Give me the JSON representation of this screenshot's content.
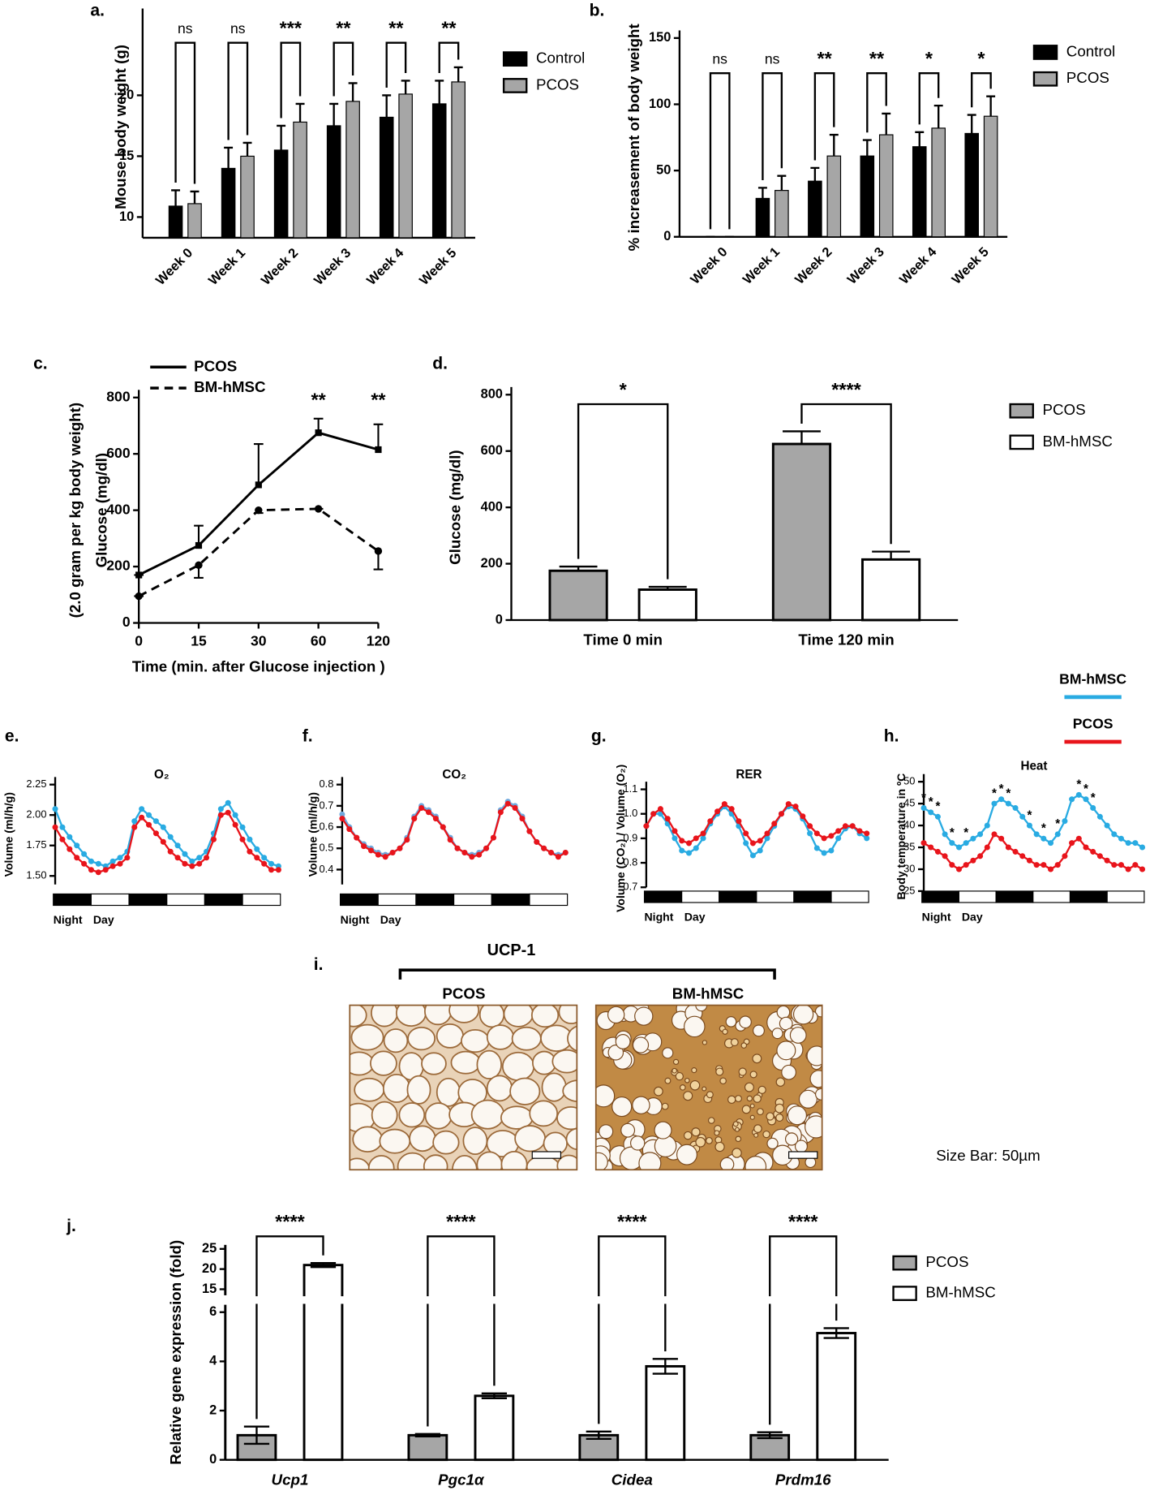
{
  "chart_data": [
    {
      "type": "bar",
      "panel": "a.",
      "y_label": "Mouse body weight (g)",
      "categories": [
        "Week 0",
        "Week 1",
        "Week 2",
        "Week 3",
        "Week 4",
        "Week 5"
      ],
      "series": [
        {
          "name": "Control",
          "color": "#000000",
          "values": [
            10.9,
            14,
            15.5,
            17.5,
            18.2,
            19.3
          ],
          "errors": [
            1.3,
            1.7,
            2,
            1.8,
            1.8,
            1.9
          ]
        },
        {
          "name": "PCOS",
          "color": "#a6a6a6",
          "values": [
            11.1,
            15,
            17.8,
            19.5,
            20.1,
            21.1
          ],
          "errors": [
            1,
            1.1,
            1.5,
            1.5,
            1.1,
            1.2
          ]
        }
      ],
      "significance": [
        "ns",
        "ns",
        "***",
        "**",
        "**",
        "**"
      ],
      "ylim": [
        8.3,
        26.5
      ],
      "yticks": [
        10,
        15,
        20
      ]
    },
    {
      "type": "bar",
      "panel": "b.",
      "y_label": "% increasement of body weight",
      "categories": [
        "Week 0",
        "Week 1",
        "Week 2",
        "Week 3",
        "Week 4",
        "Week 5"
      ],
      "series": [
        {
          "name": "Control",
          "color": "#000000",
          "values": [
            0,
            29,
            42,
            61,
            68,
            78
          ],
          "errors": [
            0,
            8,
            10,
            12,
            11,
            14
          ]
        },
        {
          "name": "PCOS",
          "color": "#a6a6a6",
          "values": [
            0,
            35,
            61,
            77,
            82,
            91
          ],
          "errors": [
            0,
            11,
            16,
            16,
            17,
            15
          ]
        }
      ],
      "significance": [
        "ns",
        "ns",
        "**",
        "**",
        "*",
        "*"
      ],
      "ylim": [
        0,
        150
      ],
      "yticks": [
        0,
        50,
        100,
        150
      ]
    },
    {
      "type": "line",
      "panel": "c.",
      "y_label": [
        "(2.0 gram per kg body weight)",
        "Glucose (mg/dl)"
      ],
      "x_label": "Time (min. after Glucose injection )",
      "categories": [
        "0",
        "15",
        "30",
        "60",
        "120"
      ],
      "series": [
        {
          "name": "PCOS",
          "color": "#000000",
          "dash": false,
          "values": [
            170,
            275,
            490,
            675,
            615
          ],
          "errors": [
            0,
            70,
            145,
            50,
            90
          ]
        },
        {
          "name": "BM-hMSC",
          "color": "#000000",
          "dash": true,
          "values": [
            95,
            205,
            400,
            405,
            255
          ],
          "errors": [
            0,
            45,
            10,
            0,
            65
          ]
        }
      ],
      "significance": [
        null,
        null,
        null,
        "**",
        "**"
      ],
      "ylim": [
        0,
        800
      ],
      "yticks": [
        0,
        200,
        400,
        600,
        800
      ]
    },
    {
      "type": "bar",
      "panel": "d.",
      "y_label": "Glucose (mg/dl)",
      "categories": [
        "Time 0 min",
        "Time 120 min"
      ],
      "series": [
        {
          "name": "PCOS",
          "color": "#a6a6a6",
          "values": [
            175,
            625
          ],
          "errors": [
            15,
            45
          ]
        },
        {
          "name": "BM-hMSC",
          "color": "#ffffff",
          "values": [
            108,
            215
          ],
          "errors": [
            10,
            28
          ]
        }
      ],
      "significance": [
        "*",
        "****"
      ],
      "ylim": [
        0,
        800
      ],
      "yticks": [
        0,
        200,
        400,
        600,
        800
      ]
    },
    {
      "type": "timeseries",
      "panel": "e.",
      "title": "O₂",
      "y_label": "Volume (ml/h/g)",
      "phase_labels": [
        "Night",
        "Day"
      ],
      "series": [
        {
          "color": "#29abe2",
          "values": [
            2.05,
            1.9,
            1.82,
            1.75,
            1.68,
            1.62,
            1.6,
            1.58,
            1.62,
            1.65,
            1.7,
            1.95,
            2.05,
            2.0,
            1.95,
            1.9,
            1.82,
            1.75,
            1.68,
            1.62,
            1.65,
            1.7,
            1.85,
            2.05,
            2.1,
            2.0,
            1.9,
            1.8,
            1.72,
            1.65,
            1.6,
            1.58
          ]
        },
        {
          "color": "#e8141b",
          "values": [
            1.9,
            1.8,
            1.72,
            1.65,
            1.6,
            1.55,
            1.53,
            1.55,
            1.58,
            1.6,
            1.65,
            1.9,
            1.98,
            1.92,
            1.85,
            1.78,
            1.7,
            1.65,
            1.6,
            1.58,
            1.6,
            1.65,
            1.8,
            2.0,
            2.02,
            1.92,
            1.8,
            1.7,
            1.65,
            1.6,
            1.55,
            1.55
          ]
        }
      ],
      "ylim": [
        1.43,
        2.25
      ],
      "yticks": [
        {
          "value": 1.5,
          "label": "1.50"
        },
        1.75,
        {
          "value": 2,
          "label": "2.00"
        },
        2.25
      ]
    },
    {
      "type": "timeseries",
      "panel": "f.",
      "title": "CO₂",
      "y_label": "Volume (ml/h/g)",
      "phase_labels": [
        "Night",
        "Day"
      ],
      "series": [
        {
          "color": "#6fa8dc",
          "values": [
            0.66,
            0.6,
            0.55,
            0.52,
            0.5,
            0.48,
            0.47,
            0.48,
            0.5,
            0.55,
            0.65,
            0.7,
            0.68,
            0.65,
            0.6,
            0.55,
            0.5,
            0.48,
            0.47,
            0.48,
            0.5,
            0.55,
            0.68,
            0.72,
            0.7,
            0.65,
            0.58,
            0.53,
            0.5,
            0.48,
            0.47,
            0.48
          ]
        },
        {
          "color": "#e8141b",
          "values": [
            0.64,
            0.59,
            0.55,
            0.51,
            0.49,
            0.47,
            0.46,
            0.48,
            0.5,
            0.54,
            0.64,
            0.69,
            0.67,
            0.64,
            0.6,
            0.54,
            0.5,
            0.48,
            0.46,
            0.47,
            0.5,
            0.55,
            0.67,
            0.71,
            0.69,
            0.64,
            0.58,
            0.53,
            0.5,
            0.48,
            0.46,
            0.48
          ]
        }
      ],
      "ylim": [
        0.33,
        0.8
      ],
      "yticks": [
        0.4,
        0.5,
        0.6,
        0.7,
        0.8
      ]
    },
    {
      "type": "timeseries",
      "panel": "g.",
      "title": "RER",
      "y_label": "Volume (CO₂) / Volume (O₂)",
      "phase_labels": [
        "Night",
        "Day"
      ],
      "series": [
        {
          "color": "#29abe2",
          "values": [
            0.95,
            1.0,
            1.0,
            0.96,
            0.9,
            0.85,
            0.84,
            0.86,
            0.9,
            0.96,
            1.0,
            1.03,
            1.0,
            0.95,
            0.88,
            0.83,
            0.85,
            0.9,
            0.95,
            1.0,
            1.03,
            1.02,
            0.98,
            0.92,
            0.86,
            0.84,
            0.85,
            0.9,
            0.94,
            0.95,
            0.92,
            0.9
          ]
        },
        {
          "color": "#e8141b",
          "values": [
            0.95,
            1.0,
            1.02,
            0.98,
            0.93,
            0.89,
            0.88,
            0.9,
            0.92,
            0.97,
            1.01,
            1.04,
            1.02,
            0.97,
            0.92,
            0.88,
            0.89,
            0.92,
            0.96,
            1.0,
            1.04,
            1.03,
            0.99,
            0.95,
            0.92,
            0.9,
            0.91,
            0.93,
            0.95,
            0.95,
            0.93,
            0.92
          ]
        }
      ],
      "ylim": [
        0.7,
        1.1
      ],
      "yticks": [
        0.7,
        0.8,
        0.9,
        {
          "value": 1,
          "label": "1.0"
        },
        1.1
      ]
    },
    {
      "type": "timeseries",
      "panel": "h.",
      "title": "Heat",
      "y_label": "Body temperature in ºC",
      "phase_labels": [
        "Night",
        "Day"
      ],
      "series": [
        {
          "name": "BM-hMSC",
          "color": "#29abe2",
          "values": [
            44,
            43,
            42,
            38,
            36,
            35,
            36,
            37,
            38,
            40,
            45,
            46,
            45,
            44,
            42,
            40,
            38,
            37,
            36,
            38,
            41,
            46,
            47,
            46,
            44,
            42,
            40,
            38,
            37,
            36,
            36,
            35
          ]
        },
        {
          "name": "PCOS",
          "color": "#e8141b",
          "values": [
            36,
            35,
            34,
            33,
            31,
            30,
            31,
            32,
            33,
            35,
            38,
            37,
            35,
            34,
            33,
            32,
            31,
            31,
            30,
            31,
            33,
            36,
            37,
            35,
            34,
            33,
            32,
            31,
            31,
            30,
            31,
            30
          ]
        }
      ],
      "significance": [
        "*",
        "*",
        "*",
        null,
        "*",
        null,
        "*",
        null,
        null,
        null,
        "*",
        "*",
        "*",
        null,
        null,
        "*",
        null,
        "*",
        null,
        "*",
        null,
        null,
        "*",
        "*",
        "*",
        null,
        null,
        null,
        null,
        null,
        null,
        null
      ],
      "ylim": [
        25,
        50
      ],
      "yticks": [
        25,
        30,
        35,
        40,
        45,
        50
      ]
    },
    {
      "type": "bar",
      "panel": "j.",
      "y_label": "Relative gene expression (fold)",
      "categories": [
        "Ucp1",
        "Pgc1α",
        "Cidea",
        "Prdm16"
      ],
      "series": [
        {
          "name": "PCOS",
          "color": "#a6a6a6",
          "values": [
            1,
            1,
            1,
            1
          ],
          "errors": [
            0.35,
            0.05,
            0.15,
            0.12
          ]
        },
        {
          "name": "BM-hMSC",
          "color": "#ffffff",
          "values": [
            21,
            2.6,
            3.8,
            5.15
          ],
          "errors": [
            0.5,
            0.1,
            0.3,
            0.2
          ]
        }
      ],
      "significance": [
        "****",
        "****",
        "****",
        "****"
      ],
      "ylim": [
        0,
        26
      ],
      "ybreak": [
        6.3,
        13.5
      ],
      "yticks": [
        0,
        2,
        4,
        6,
        15,
        20,
        25
      ]
    }
  ],
  "image_panel": {
    "panel": "i.",
    "title": "UCP-1",
    "images": [
      "PCOS",
      "BM-hMSC"
    ],
    "scale_note": "Size Bar: 50µm"
  }
}
